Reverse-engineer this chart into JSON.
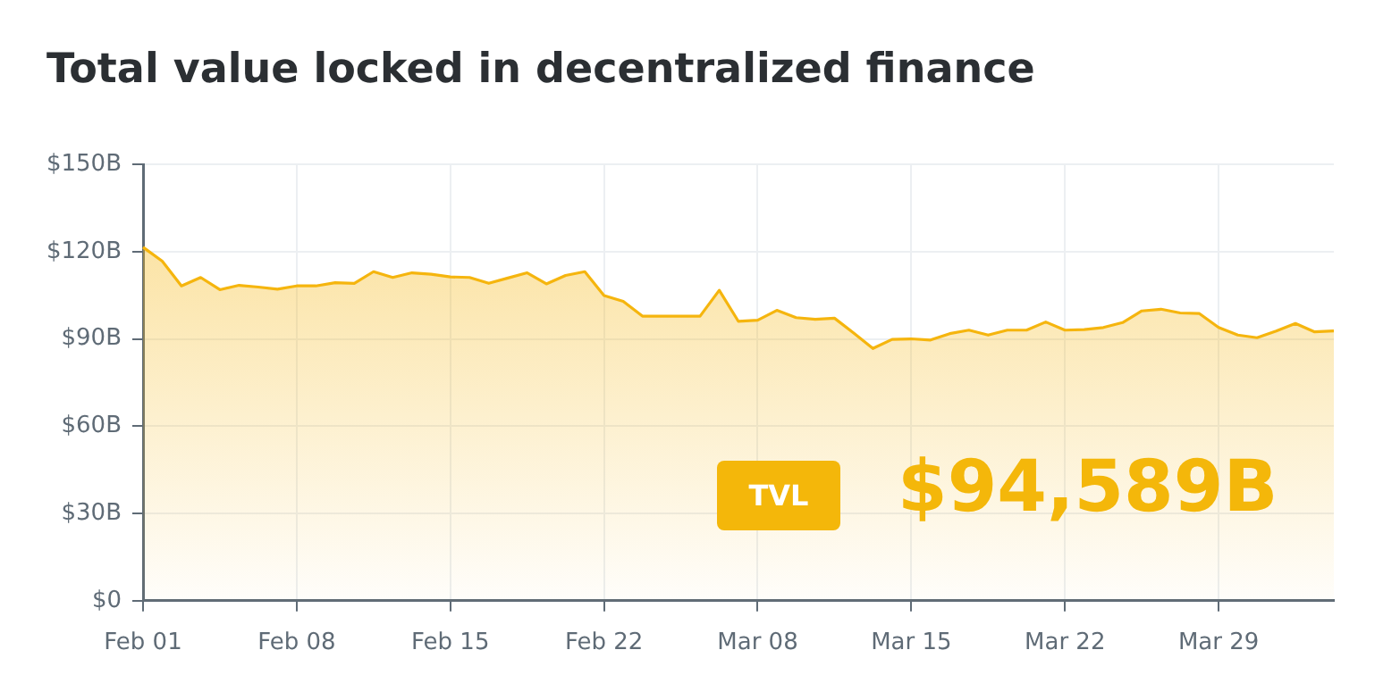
{
  "chart_data": {
    "type": "area",
    "title": "Total value locked in decentralized finance",
    "categories": [
      "Feb 01",
      null,
      null,
      null,
      null,
      null,
      null,
      null,
      "Feb 08",
      null,
      null,
      null,
      null,
      null,
      null,
      null,
      "Feb 15",
      null,
      null,
      null,
      null,
      null,
      null,
      null,
      "Feb 22",
      null,
      null,
      null,
      null,
      null,
      null,
      null,
      "Mar 08",
      null,
      null,
      null,
      null,
      null,
      null,
      null,
      "Mar 15",
      null,
      null,
      null,
      null,
      null,
      null,
      null,
      "Mar 22",
      null,
      null,
      null,
      null,
      null,
      null,
      null,
      "Mar 29",
      null,
      null,
      null,
      null,
      null,
      null
    ],
    "series": [
      {
        "color": "#f5b50e",
        "values": [
          121.5,
          116.7,
          108.2,
          111.1,
          106.9,
          108.4,
          107.8,
          107.1,
          108.2,
          108.2,
          109.3,
          109.1,
          113.1,
          111.1,
          112.7,
          112.2,
          111.3,
          111.1,
          109.1,
          110.9,
          112.7,
          108.9,
          111.8,
          113.1,
          104.9,
          102.9,
          97.8,
          97.8,
          97.8,
          97.8,
          106.7,
          96,
          96.4,
          99.8,
          97.3,
          96.7,
          97.1,
          92,
          86.7,
          89.8,
          90,
          89.6,
          91.8,
          93,
          91.3,
          93,
          93,
          95.8,
          93,
          93.2,
          93.9,
          95.6,
          99.6,
          100.2,
          98.9,
          98.7,
          93.9,
          91.3,
          90.4,
          92.7,
          95.3,
          92.4,
          92.7
        ]
      }
    ],
    "ylim": [
      0,
      150
    ],
    "yticks": [
      {
        "value": 0,
        "label": "$0"
      },
      {
        "value": 30,
        "label": "$30B"
      },
      {
        "value": 60,
        "label": "$60B"
      },
      {
        "value": 90,
        "label": "$90B"
      },
      {
        "value": 120,
        "label": "$120B"
      },
      {
        "value": 150,
        "label": "$150B"
      }
    ],
    "grid": true,
    "legend": false,
    "marker": "none",
    "annotations": [
      "TVL",
      "$94,589B"
    ]
  }
}
